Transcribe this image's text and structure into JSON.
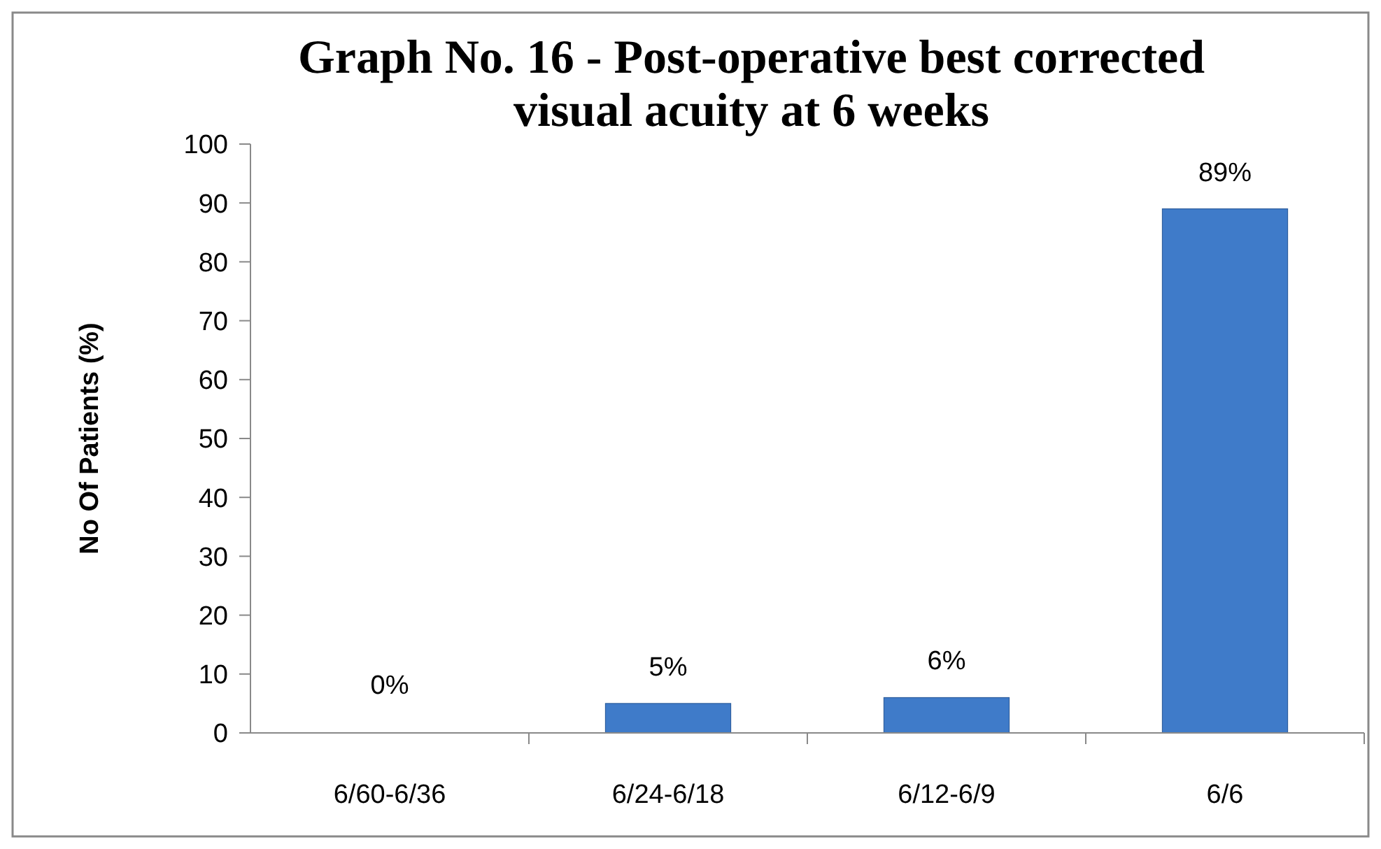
{
  "chart_data": {
    "type": "bar",
    "title": "Graph No. 16 - Post-operative best corrected visual acuity at 6 weeks",
    "ylabel": "No Of Patients (%)",
    "categories": [
      "6/60-6/36",
      "6/24-6/18",
      "6/12-6/9",
      "6/6"
    ],
    "values": [
      0,
      5,
      6,
      89
    ],
    "color": "#3f7bc9",
    "value_labels": [
      "0%",
      "5%",
      "6%",
      "89%"
    ],
    "ylim": [
      0,
      100
    ],
    "yticks": [
      0,
      10,
      20,
      30,
      40,
      50,
      60,
      70,
      80,
      90,
      100
    ],
    "grid": false
  }
}
